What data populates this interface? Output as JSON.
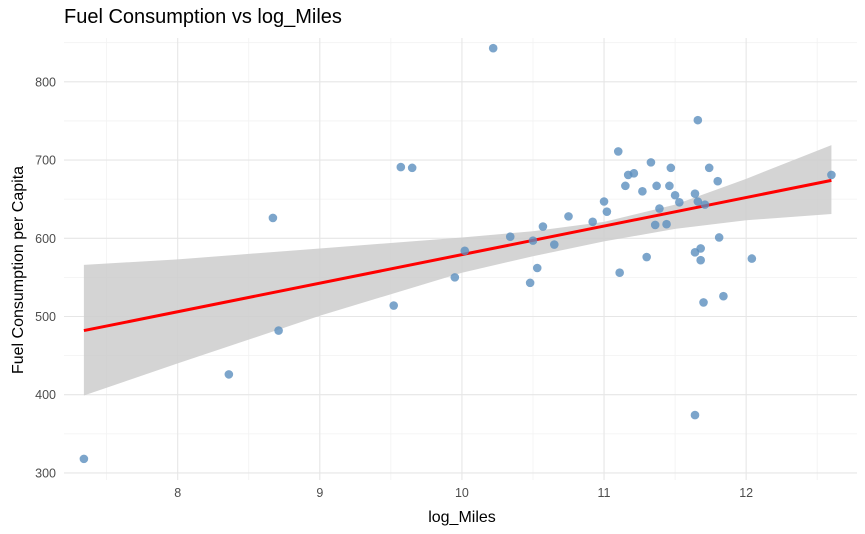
{
  "chart_data": {
    "type": "scatter",
    "title": "Fuel Consumption vs log_Miles",
    "xlabel": "log_Miles",
    "ylabel": "Fuel Consumption per Capita",
    "xlim": [
      7.2,
      12.78
    ],
    "ylim": [
      291,
      856
    ],
    "x_ticks": [
      8,
      9,
      10,
      11,
      12
    ],
    "y_ticks": [
      300,
      400,
      500,
      600,
      700,
      800
    ],
    "grid": true,
    "legend": "none",
    "point_color": "#5b8fbe",
    "trend_color": "#ff0000",
    "band_color": "#cccccc",
    "points": [
      {
        "x": 7.34,
        "y": 318
      },
      {
        "x": 8.36,
        "y": 426
      },
      {
        "x": 8.67,
        "y": 626
      },
      {
        "x": 8.71,
        "y": 482
      },
      {
        "x": 9.52,
        "y": 514
      },
      {
        "x": 9.57,
        "y": 691
      },
      {
        "x": 9.65,
        "y": 690
      },
      {
        "x": 9.95,
        "y": 550
      },
      {
        "x": 10.02,
        "y": 584
      },
      {
        "x": 10.22,
        "y": 843
      },
      {
        "x": 10.34,
        "y": 602
      },
      {
        "x": 10.48,
        "y": 543
      },
      {
        "x": 10.5,
        "y": 597
      },
      {
        "x": 10.53,
        "y": 562
      },
      {
        "x": 10.57,
        "y": 615
      },
      {
        "x": 10.65,
        "y": 592
      },
      {
        "x": 10.75,
        "y": 628
      },
      {
        "x": 10.92,
        "y": 621
      },
      {
        "x": 11.0,
        "y": 647
      },
      {
        "x": 11.02,
        "y": 634
      },
      {
        "x": 11.1,
        "y": 711
      },
      {
        "x": 11.11,
        "y": 556
      },
      {
        "x": 11.15,
        "y": 667
      },
      {
        "x": 11.17,
        "y": 681
      },
      {
        "x": 11.21,
        "y": 683
      },
      {
        "x": 11.27,
        "y": 660
      },
      {
        "x": 11.3,
        "y": 576
      },
      {
        "x": 11.33,
        "y": 697
      },
      {
        "x": 11.36,
        "y": 617
      },
      {
        "x": 11.37,
        "y": 667
      },
      {
        "x": 11.39,
        "y": 638
      },
      {
        "x": 11.44,
        "y": 618
      },
      {
        "x": 11.46,
        "y": 667
      },
      {
        "x": 11.47,
        "y": 690
      },
      {
        "x": 11.5,
        "y": 655
      },
      {
        "x": 11.53,
        "y": 646
      },
      {
        "x": 11.64,
        "y": 657
      },
      {
        "x": 11.64,
        "y": 582
      },
      {
        "x": 11.64,
        "y": 374
      },
      {
        "x": 11.66,
        "y": 647
      },
      {
        "x": 11.66,
        "y": 751
      },
      {
        "x": 11.68,
        "y": 587
      },
      {
        "x": 11.68,
        "y": 572
      },
      {
        "x": 11.7,
        "y": 518
      },
      {
        "x": 11.71,
        "y": 643
      },
      {
        "x": 11.74,
        "y": 690
      },
      {
        "x": 11.8,
        "y": 673
      },
      {
        "x": 11.81,
        "y": 601
      },
      {
        "x": 11.84,
        "y": 526
      },
      {
        "x": 12.04,
        "y": 574
      },
      {
        "x": 12.6,
        "y": 681
      }
    ],
    "trend_line": {
      "x": [
        7.34,
        12.6
      ],
      "y": [
        482,
        674
      ]
    },
    "confidence_band": {
      "x": [
        7.34,
        8.0,
        9.0,
        10.0,
        10.5,
        11.0,
        11.5,
        12.0,
        12.6
      ],
      "lower": [
        399,
        440,
        501,
        556,
        577,
        596,
        612,
        623,
        631
      ],
      "upper": [
        566,
        573,
        587,
        601,
        609,
        621,
        643,
        676,
        719
      ]
    }
  }
}
